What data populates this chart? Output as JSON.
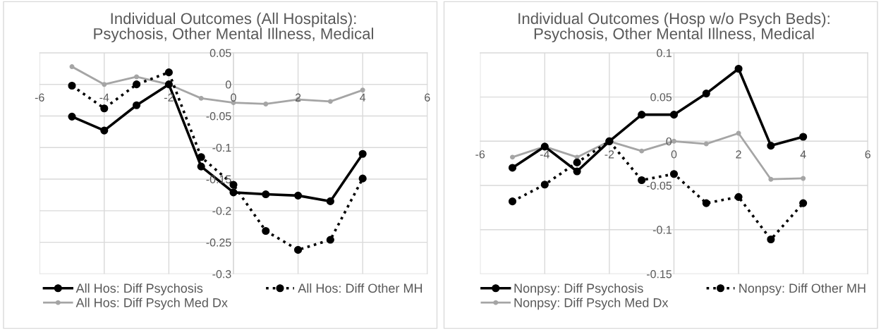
{
  "chart_data": [
    {
      "type": "line",
      "title": "Individual Outcomes (All Hospitals):\nPsychosis, Other Mental Illness, Medical",
      "x": [
        -5,
        -4,
        -3,
        -2,
        -1,
        0,
        1,
        2,
        3,
        4
      ],
      "xlim": [
        -6,
        6
      ],
      "xticks": [
        -6,
        -4,
        -2,
        0,
        2,
        4,
        6
      ],
      "ylim": [
        -0.3,
        0.05
      ],
      "yticks": [
        -0.3,
        -0.25,
        -0.2,
        -0.15,
        -0.1,
        -0.05,
        0,
        0.05
      ],
      "grid": true,
      "legend": "bottom",
      "marker": "circle",
      "series": [
        {
          "name": "All Hos: Diff Psychosis",
          "color": "#000000",
          "line_style": "solid",
          "values": [
            -0.051,
            -0.073,
            -0.033,
            0,
            -0.13,
            -0.171,
            -0.174,
            -0.176,
            -0.185,
            -0.11
          ]
        },
        {
          "name": "All Hos: Diff Other MH",
          "color": "#000000",
          "line_style": "dotted",
          "values": [
            -0.002,
            -0.038,
            0,
            0.019,
            -0.115,
            -0.159,
            -0.232,
            -0.262,
            -0.246,
            -0.149
          ]
        },
        {
          "name": "All Hos: Diff Psych Med Dx",
          "color": "#a5a5a5",
          "line_style": "solid",
          "values": [
            0.028,
            0,
            0.012,
            0,
            -0.022,
            -0.029,
            -0.031,
            -0.024,
            -0.027,
            -0.009
          ]
        }
      ]
    },
    {
      "type": "line",
      "title": "Individual Outcomes (Hosp w/o Psych Beds):\nPsychosis, Other Mental Illness, Medical",
      "x": [
        -5,
        -4,
        -3,
        -2,
        -1,
        0,
        1,
        2,
        3,
        4
      ],
      "xlim": [
        -6,
        6
      ],
      "xticks": [
        -6,
        -4,
        -2,
        0,
        2,
        4,
        6
      ],
      "ylim": [
        -0.15,
        0.1
      ],
      "yticks": [
        -0.15,
        -0.1,
        -0.05,
        0,
        0.05,
        0.1
      ],
      "grid": true,
      "legend": "bottom",
      "marker": "circle",
      "series": [
        {
          "name": "Nonpsy: Diff Psychosis",
          "color": "#000000",
          "line_style": "solid",
          "values": [
            -0.03,
            -0.006,
            -0.034,
            0,
            0.03,
            0.03,
            0.054,
            0.082,
            -0.005,
            0.005
          ]
        },
        {
          "name": "Nonpsy: Diff Other MH",
          "color": "#000000",
          "line_style": "dotted",
          "values": [
            -0.068,
            -0.049,
            -0.024,
            0,
            -0.044,
            -0.037,
            -0.07,
            -0.063,
            -0.111,
            -0.07
          ]
        },
        {
          "name": "Nonpsy: Diff Psych Med Dx",
          "color": "#a5a5a5",
          "line_style": "solid",
          "values": [
            -0.018,
            -0.006,
            -0.018,
            0,
            -0.011,
            0,
            -0.003,
            0.009,
            -0.043,
            -0.042
          ]
        }
      ]
    }
  ]
}
